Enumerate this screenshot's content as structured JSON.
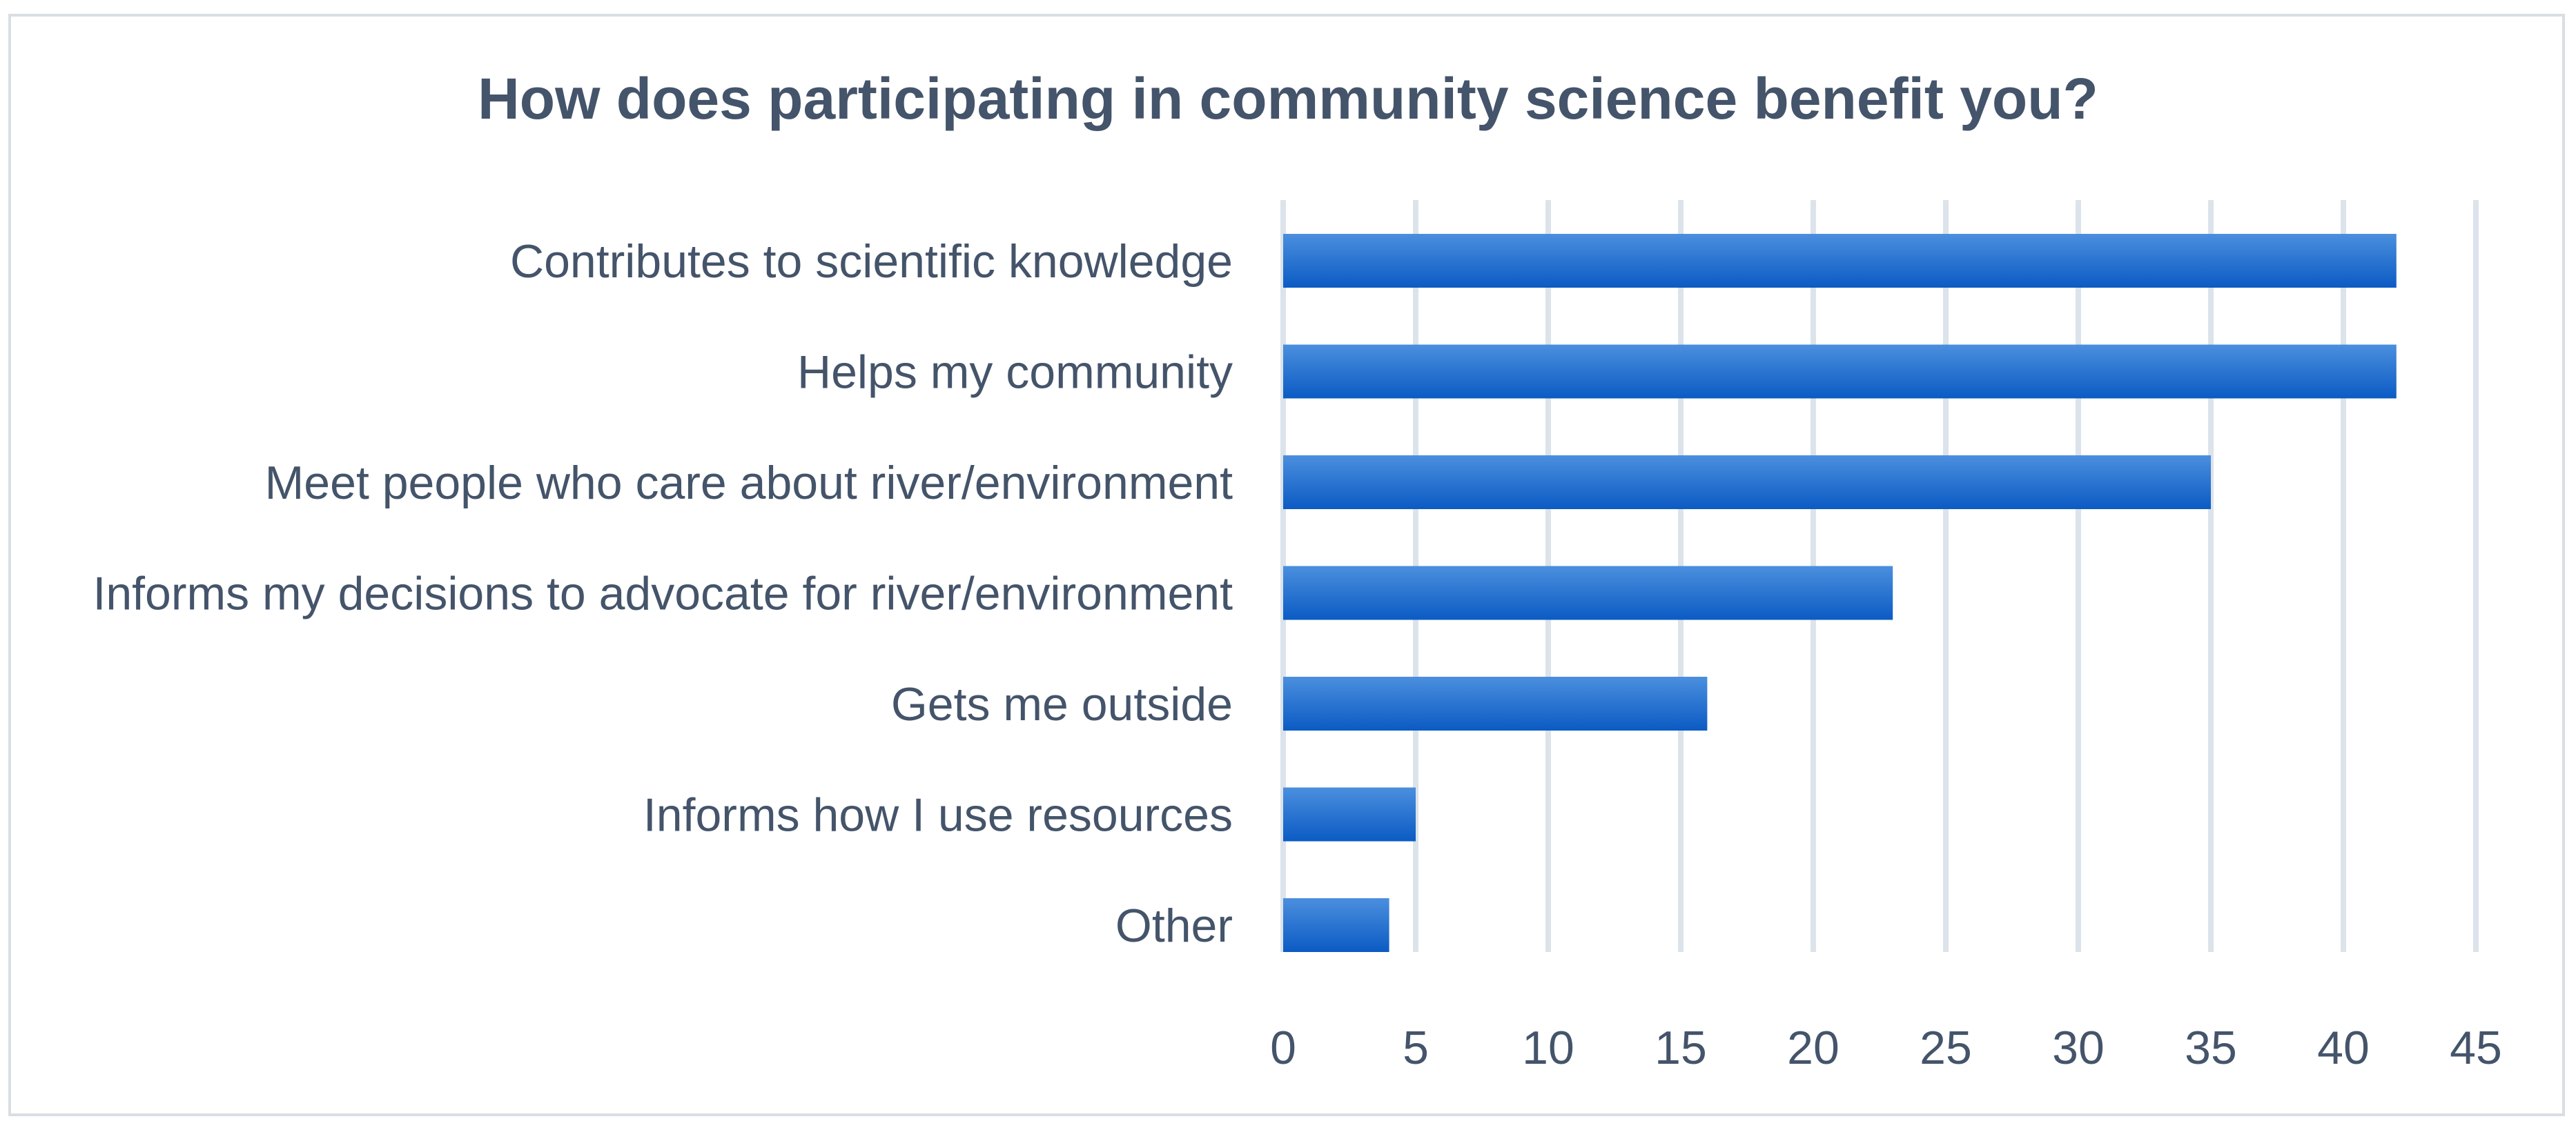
{
  "chart_data": {
    "type": "bar",
    "orientation": "horizontal",
    "title": "How does participating in community science benefit you?",
    "xlabel": "",
    "ylabel": "",
    "categories": [
      "Contributes to scientific knowledge",
      "Helps my community",
      "Meet people who care about river/environment",
      "Informs my decisions to advocate for river/environment",
      "Gets me outside",
      "Informs how I use resources",
      "Other"
    ],
    "values": [
      42,
      42,
      35,
      23,
      16,
      5,
      4
    ],
    "xlim": [
      0,
      45
    ],
    "xticks": [
      "0",
      "5",
      "10",
      "15",
      "20",
      "25",
      "30",
      "35",
      "40",
      "45"
    ],
    "grid": "vertical",
    "legend": "none",
    "colors": {
      "bar_light": "#4b8fde",
      "bar_dark": "#0b5bc4",
      "grid": "#dce3ea",
      "text": "#44546a",
      "frame": "#d9dee4"
    }
  }
}
